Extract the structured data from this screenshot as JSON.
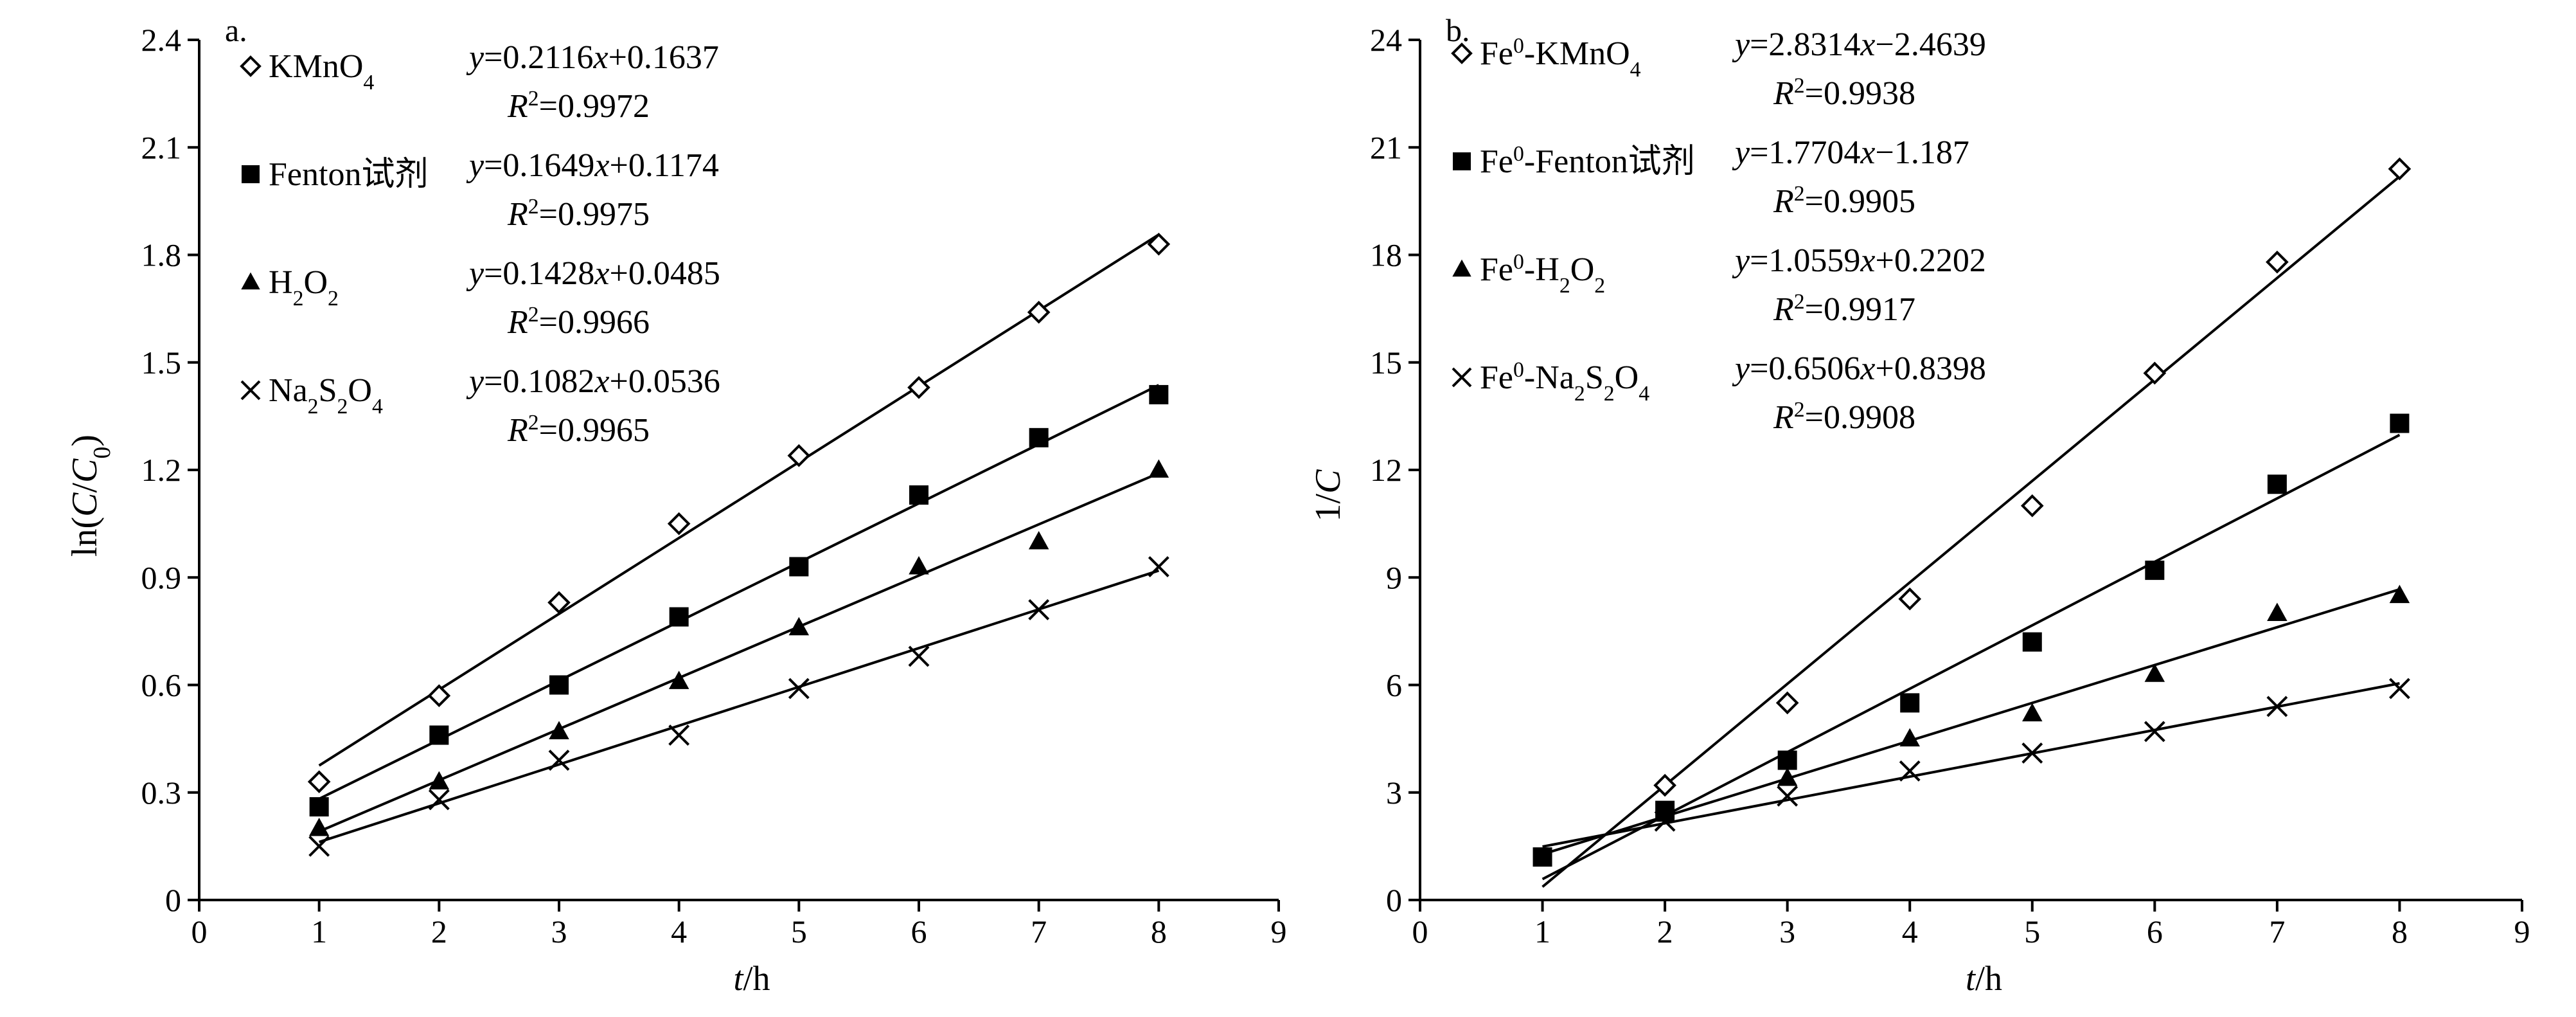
{
  "chart_data": [
    {
      "type": "scatter",
      "panel_label": "a.",
      "xlabel": "t/h",
      "ylabel": "ln(C/C0)",
      "xlim": [
        0,
        9
      ],
      "ylim": [
        0,
        2.4
      ],
      "xticks": [
        "0",
        "1",
        "2",
        "3",
        "4",
        "5",
        "6",
        "7",
        "8",
        "9"
      ],
      "yticks": [
        "0",
        "0.3",
        "0.6",
        "0.9",
        "1.2",
        "1.5",
        "1.8",
        "2.1",
        "2.4"
      ],
      "grid": false,
      "legend_position": "top-left",
      "series": [
        {
          "name": "KMnO4",
          "marker": "diamond-open",
          "x": [
            1,
            2,
            3,
            4,
            5,
            6,
            7,
            8
          ],
          "y": [
            0.33,
            0.57,
            0.83,
            1.05,
            1.24,
            1.43,
            1.64,
            1.83
          ],
          "fit": {
            "slope": 0.2116,
            "intercept": 0.1637,
            "equation": "y=0.2116x+0.1637",
            "r2": "R²=0.9972"
          }
        },
        {
          "name": "Fenton试剂",
          "marker": "square-filled",
          "x": [
            1,
            2,
            3,
            4,
            5,
            6,
            7,
            8
          ],
          "y": [
            0.26,
            0.46,
            0.6,
            0.79,
            0.93,
            1.13,
            1.29,
            1.41
          ],
          "fit": {
            "slope": 0.1649,
            "intercept": 0.1174,
            "equation": "y=0.1649x+0.1174",
            "r2": "R²=0.9975"
          }
        },
        {
          "name": "H2O2",
          "marker": "triangle-filled",
          "x": [
            1,
            2,
            3,
            4,
            5,
            6,
            7,
            8
          ],
          "y": [
            0.2,
            0.33,
            0.47,
            0.61,
            0.76,
            0.93,
            1.0,
            1.2
          ],
          "fit": {
            "slope": 0.1428,
            "intercept": 0.0485,
            "equation": "y=0.1428x+0.0485",
            "r2": "R²=0.9966"
          }
        },
        {
          "name": "Na2S2O4",
          "marker": "cross",
          "x": [
            1,
            2,
            3,
            4,
            5,
            6,
            7,
            8
          ],
          "y": [
            0.15,
            0.28,
            0.39,
            0.46,
            0.59,
            0.68,
            0.81,
            0.93
          ],
          "fit": {
            "slope": 0.1082,
            "intercept": 0.0536,
            "equation": "y=0.1082x+0.0536",
            "r2": "R²=0.9965"
          }
        }
      ]
    },
    {
      "type": "scatter",
      "panel_label": "b.",
      "xlabel": "t/h",
      "ylabel": "1/C",
      "xlim": [
        0,
        9
      ],
      "ylim": [
        0,
        24
      ],
      "xticks": [
        "0",
        "1",
        "2",
        "3",
        "4",
        "5",
        "6",
        "7",
        "8",
        "9"
      ],
      "yticks": [
        "0",
        "3",
        "6",
        "9",
        "12",
        "15",
        "18",
        "21",
        "24"
      ],
      "grid": false,
      "legend_position": "top-left",
      "series": [
        {
          "name": "Fe0-KMnO4",
          "marker": "diamond-open",
          "x": [
            2,
            3,
            4,
            5,
            6,
            7,
            8
          ],
          "y": [
            3.2,
            5.5,
            8.4,
            11.0,
            14.7,
            17.8,
            20.4
          ],
          "fit": {
            "slope": 2.8314,
            "intercept": -2.4639,
            "equation": "y=2.8314x−2.4639",
            "r2": "R²=0.9938"
          }
        },
        {
          "name": "Fe0-Fenton试剂",
          "marker": "square-filled",
          "x": [
            1,
            2,
            3,
            4,
            5,
            6,
            7,
            8
          ],
          "y": [
            1.2,
            2.5,
            3.9,
            5.5,
            7.2,
            9.2,
            11.6,
            13.3
          ],
          "fit": {
            "slope": 1.7704,
            "intercept": -1.187,
            "equation": "y=1.7704x−1.187",
            "r2": "R²=0.9905"
          }
        },
        {
          "name": "Fe0-H2O2",
          "marker": "triangle-filled",
          "x": [
            2,
            3,
            4,
            5,
            6,
            7,
            8
          ],
          "y": [
            2.4,
            3.4,
            4.5,
            5.2,
            6.3,
            8.0,
            8.5
          ],
          "fit": {
            "slope": 1.0559,
            "intercept": 0.2202,
            "equation": "y=1.0559x+0.2202",
            "r2": "R²=0.9917"
          }
        },
        {
          "name": "Fe0-Na2S2O4",
          "marker": "cross",
          "x": [
            2,
            3,
            4,
            5,
            6,
            7,
            8
          ],
          "y": [
            2.2,
            2.9,
            3.6,
            4.1,
            4.7,
            5.4,
            5.9
          ],
          "fit": {
            "slope": 0.6506,
            "intercept": 0.8398,
            "equation": "y=0.6506x+0.8398",
            "r2": "R²=0.9908"
          }
        }
      ]
    }
  ]
}
